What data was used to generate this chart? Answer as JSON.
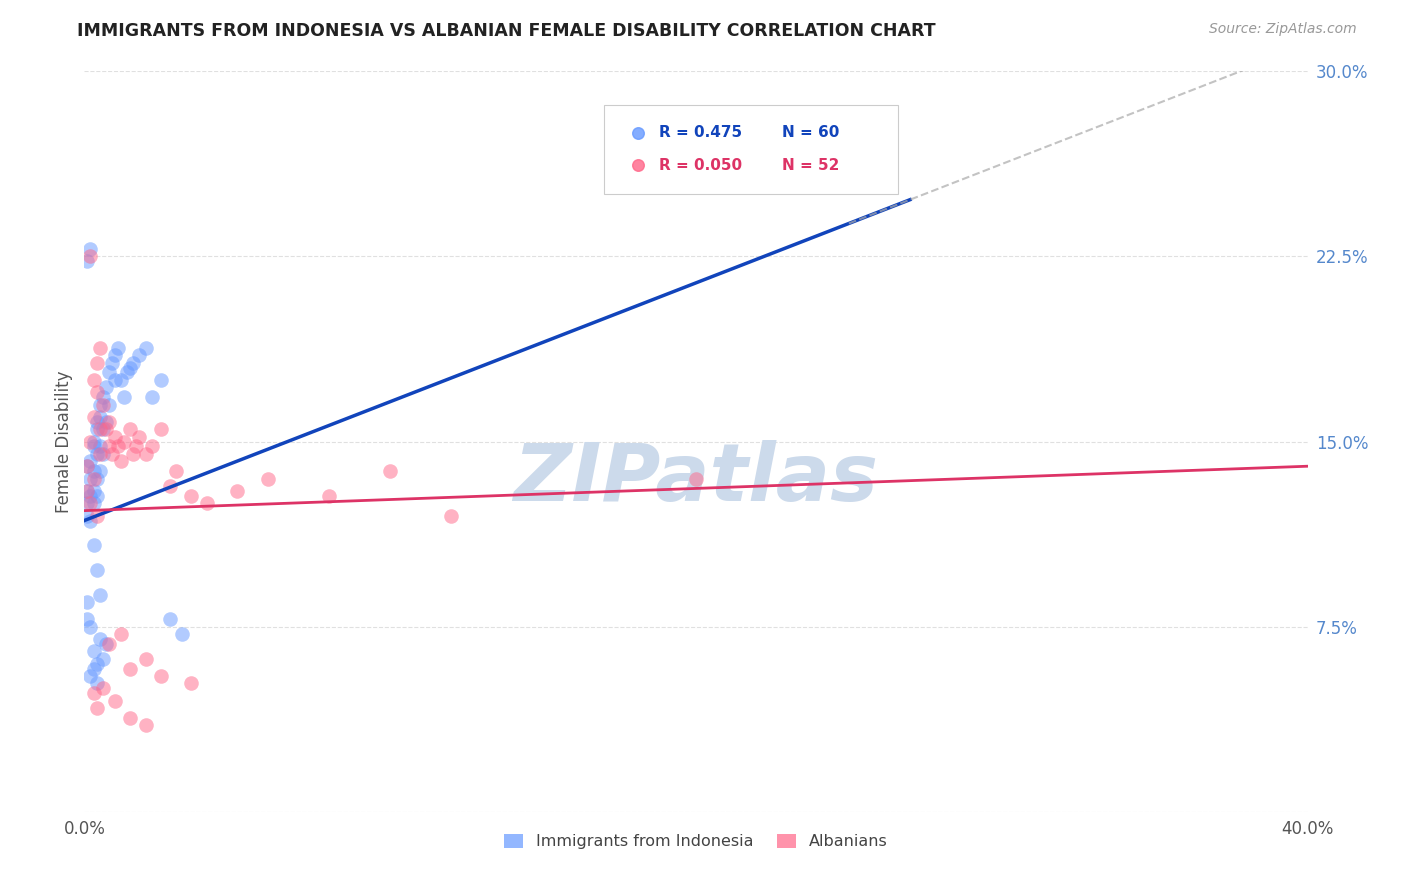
{
  "title": "IMMIGRANTS FROM INDONESIA VS ALBANIAN FEMALE DISABILITY CORRELATION CHART",
  "source": "Source: ZipAtlas.com",
  "ylabel": "Female Disability",
  "xlim": [
    0.0,
    0.4
  ],
  "ylim": [
    0.0,
    0.3
  ],
  "xticks": [
    0.0,
    0.1,
    0.2,
    0.3,
    0.4
  ],
  "xticklabels": [
    "0.0%",
    "",
    "",
    "",
    "40.0%"
  ],
  "yticks": [
    0.0,
    0.075,
    0.15,
    0.225,
    0.3
  ],
  "yticklabels": [
    "",
    "7.5%",
    "15.0%",
    "22.5%",
    "30.0%"
  ],
  "legend_label_blue": "Immigrants from Indonesia",
  "legend_label_pink": "Albanians",
  "blue_color": "#6699ff",
  "pink_color": "#ff6688",
  "trendline_blue_color": "#1144bb",
  "trendline_pink_color": "#dd3366",
  "background_color": "#ffffff",
  "grid_color": "#dddddd",
  "title_color": "#222222",
  "watermark_color": "#ccdaeb",
  "blue_scatter_x": [
    0.001,
    0.001,
    0.001,
    0.001,
    0.002,
    0.002,
    0.002,
    0.002,
    0.003,
    0.003,
    0.003,
    0.003,
    0.003,
    0.004,
    0.004,
    0.004,
    0.004,
    0.004,
    0.005,
    0.005,
    0.005,
    0.005,
    0.006,
    0.006,
    0.006,
    0.007,
    0.007,
    0.008,
    0.008,
    0.009,
    0.01,
    0.01,
    0.011,
    0.012,
    0.013,
    0.014,
    0.015,
    0.016,
    0.018,
    0.02,
    0.022,
    0.025,
    0.028,
    0.032,
    0.001,
    0.002,
    0.003,
    0.004,
    0.005,
    0.007,
    0.003,
    0.004,
    0.002,
    0.003,
    0.004,
    0.001,
    0.001,
    0.002,
    0.005,
    0.006
  ],
  "blue_scatter_y": [
    0.13,
    0.14,
    0.12,
    0.125,
    0.135,
    0.128,
    0.118,
    0.142,
    0.148,
    0.138,
    0.125,
    0.15,
    0.13,
    0.155,
    0.145,
    0.135,
    0.128,
    0.158,
    0.16,
    0.148,
    0.138,
    0.165,
    0.168,
    0.155,
    0.145,
    0.172,
    0.158,
    0.178,
    0.165,
    0.182,
    0.185,
    0.175,
    0.188,
    0.175,
    0.168,
    0.178,
    0.18,
    0.182,
    0.185,
    0.188,
    0.168,
    0.175,
    0.078,
    0.072,
    0.223,
    0.228,
    0.108,
    0.098,
    0.088,
    0.068,
    0.065,
    0.06,
    0.055,
    0.058,
    0.052,
    0.085,
    0.078,
    0.075,
    0.07,
    0.062
  ],
  "pink_scatter_x": [
    0.001,
    0.001,
    0.002,
    0.002,
    0.003,
    0.003,
    0.004,
    0.004,
    0.005,
    0.005,
    0.006,
    0.007,
    0.008,
    0.008,
    0.009,
    0.01,
    0.011,
    0.012,
    0.013,
    0.015,
    0.016,
    0.017,
    0.018,
    0.02,
    0.022,
    0.025,
    0.028,
    0.03,
    0.035,
    0.04,
    0.05,
    0.06,
    0.08,
    0.1,
    0.12,
    0.2,
    0.002,
    0.003,
    0.004,
    0.005,
    0.008,
    0.012,
    0.015,
    0.02,
    0.025,
    0.035,
    0.003,
    0.004,
    0.006,
    0.01,
    0.015,
    0.02
  ],
  "pink_scatter_y": [
    0.14,
    0.13,
    0.15,
    0.125,
    0.16,
    0.135,
    0.17,
    0.12,
    0.155,
    0.145,
    0.165,
    0.155,
    0.148,
    0.158,
    0.145,
    0.152,
    0.148,
    0.142,
    0.15,
    0.155,
    0.145,
    0.148,
    0.152,
    0.145,
    0.148,
    0.155,
    0.132,
    0.138,
    0.128,
    0.125,
    0.13,
    0.135,
    0.128,
    0.138,
    0.12,
    0.135,
    0.225,
    0.175,
    0.182,
    0.188,
    0.068,
    0.072,
    0.058,
    0.062,
    0.055,
    0.052,
    0.048,
    0.042,
    0.05,
    0.045,
    0.038,
    0.035
  ],
  "trendline_blue_x0": 0.0,
  "trendline_blue_y0": 0.118,
  "trendline_blue_x1": 0.27,
  "trendline_blue_y1": 0.248,
  "trendline_blue_dash_x0": 0.25,
  "trendline_blue_dash_x1": 0.4,
  "trendline_pink_x0": 0.0,
  "trendline_pink_y0": 0.122,
  "trendline_pink_x1": 0.4,
  "trendline_pink_y1": 0.14,
  "figsize": [
    14.06,
    8.92
  ],
  "dpi": 100
}
